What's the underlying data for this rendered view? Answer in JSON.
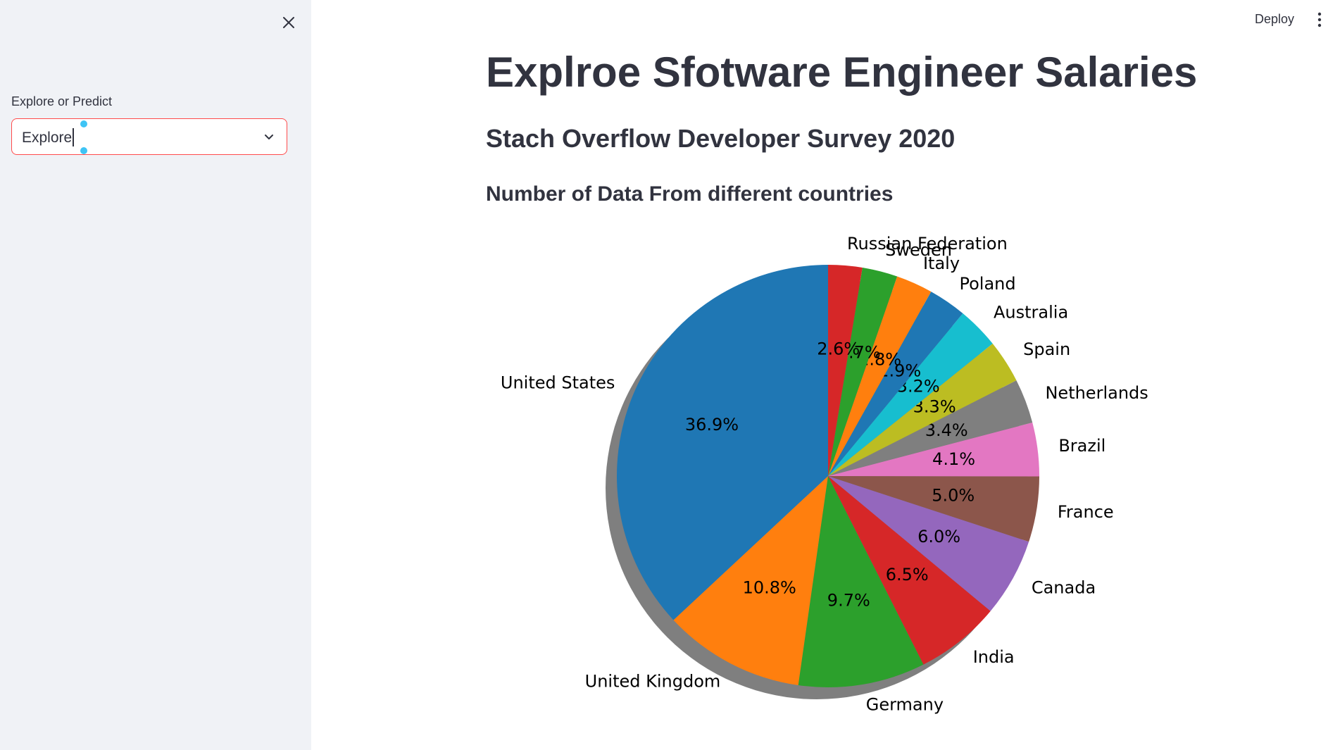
{
  "header": {
    "deploy_label": "Deploy"
  },
  "sidebar": {
    "select_label": "Explore or Predict",
    "select_value": "Explore"
  },
  "main": {
    "title": "Explroe Sfotware Engineer Salaries",
    "subtitle": "Stach Overflow Developer Survey 2020",
    "chart_title": "Number of Data From different countries"
  },
  "chart_data": {
    "type": "pie",
    "title": "",
    "start_angle_deg": 90,
    "direction": "counterclockwise",
    "shadow": true,
    "categories": [
      "United States",
      "United Kingdom",
      "Germany",
      "India",
      "Canada",
      "France",
      "Brazil",
      "Netherlands",
      "Spain",
      "Australia",
      "Poland",
      "Italy",
      "Sweden",
      "Russian Federation"
    ],
    "values": [
      36.9,
      10.8,
      9.7,
      6.5,
      6.0,
      5.0,
      4.1,
      3.4,
      3.3,
      3.2,
      2.9,
      2.8,
      2.7,
      2.6
    ],
    "value_labels": [
      "36.9%",
      "10.8%",
      "9.7%",
      "6.5%",
      "6.0%",
      "5.0%",
      "4.1%",
      "3.4%",
      "3.3%",
      "3.2%",
      "2.9%",
      "2.8%",
      "2.7%",
      "2.6%"
    ],
    "colors": [
      "#1f77b4",
      "#ff7f0e",
      "#2ca02c",
      "#d62728",
      "#9467bd",
      "#8c564b",
      "#e377c2",
      "#7f7f7f",
      "#bcbd22",
      "#17becf",
      "#1f77b4",
      "#ff7f0e",
      "#2ca02c",
      "#d62728"
    ]
  }
}
